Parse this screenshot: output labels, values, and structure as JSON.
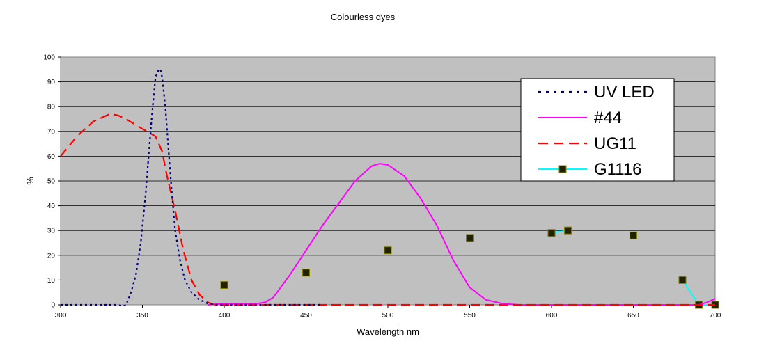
{
  "chart_data": {
    "type": "line",
    "title": "Colourless dyes",
    "xlabel": "Wavelength nm",
    "ylabel": "%",
    "xlim": [
      300,
      700
    ],
    "ylim": [
      0,
      100
    ],
    "x_ticks": [
      "300",
      "350",
      "400",
      "450",
      "500",
      "550",
      "600",
      "650",
      "700"
    ],
    "y_ticks": [
      "0",
      "10",
      "20",
      "30",
      "40",
      "50",
      "60",
      "70",
      "80",
      "90",
      "100"
    ],
    "grid": true,
    "legend_position": "top-right",
    "plot_background": "#c0c0c0",
    "series": [
      {
        "name": "UV LED",
        "color": "#000080",
        "style": "dotted",
        "x": [
          300,
          330,
          335,
          338,
          340,
          343,
          346,
          349,
          352,
          354,
          356,
          358,
          360,
          361,
          362,
          364,
          366,
          368,
          370,
          373,
          376,
          380,
          385,
          390,
          395,
          400,
          420,
          460
        ],
        "y": [
          0,
          0,
          0,
          -0.5,
          0,
          5,
          12,
          25,
          45,
          62,
          78,
          92,
          95,
          95,
          92,
          80,
          62,
          45,
          30,
          18,
          10,
          5,
          2,
          0.5,
          0,
          0,
          0,
          0
        ]
      },
      {
        "name": "#44",
        "color": "#ff00ff",
        "style": "solid",
        "x": [
          390,
          400,
          410,
          420,
          425,
          430,
          440,
          450,
          460,
          470,
          480,
          490,
          495,
          500,
          510,
          520,
          530,
          540,
          550,
          560,
          570,
          580,
          600,
          650,
          690,
          695,
          700
        ],
        "y": [
          0,
          0.5,
          0.5,
          0.5,
          1,
          3,
          12,
          22,
          32,
          41,
          50,
          56,
          57,
          56.5,
          52,
          43,
          32,
          18,
          7,
          2,
          0.5,
          0,
          0,
          0,
          0,
          1,
          2.5
        ]
      },
      {
        "name": "UG11",
        "color": "#ff0000",
        "style": "dashed",
        "x": [
          300,
          310,
          320,
          330,
          335,
          340,
          350,
          358,
          362,
          365,
          370,
          375,
          380,
          385,
          390,
          393,
          395,
          400,
          420,
          500,
          600,
          690,
          700
        ],
        "y": [
          60,
          68,
          74,
          77,
          76.5,
          75,
          71,
          68,
          62,
          52,
          38,
          22,
          10,
          4,
          1,
          0.2,
          0,
          0,
          0,
          0,
          0,
          0,
          0
        ]
      },
      {
        "name": "G1116",
        "color": "#00ffff",
        "style": "solid-markers",
        "marker_color": "#000000",
        "x": [
          400,
          450,
          500,
          550,
          600,
          610,
          650,
          680,
          690,
          700
        ],
        "y": [
          8,
          13,
          22,
          27,
          29,
          30,
          28,
          10,
          0,
          0
        ]
      }
    ]
  }
}
